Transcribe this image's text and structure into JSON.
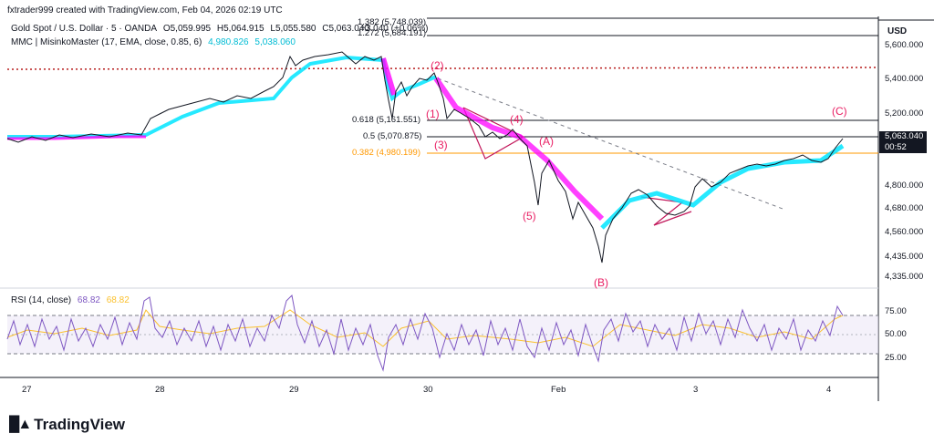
{
  "header": {
    "credit": "fxtrader999 created with TradingView.com, Feb 04, 2026 02:19 UTC"
  },
  "legend": {
    "symbol": "Gold Spot / U.S. Dollar · 5 · OANDA",
    "open": "O5,059.995",
    "high": "H5,064.915",
    "low": "L5,055.580",
    "close": "C5,063.040",
    "change": "+3.040 (+0.06%)",
    "indicator": "MMC | MisinkoMaster (17, EMA, close, 0.85, 6)",
    "ind_val1": "4,980.826",
    "ind_val2": "5,038.060"
  },
  "price_axis": {
    "currency": "USD",
    "ticks": [
      "5,600.000",
      "5,400.000",
      "5,200.000",
      "4,800.000",
      "4,680.000",
      "4,560.000",
      "4,435.000",
      "4,335.000"
    ],
    "last_price": "5,063.040",
    "countdown": "00:52"
  },
  "rsi_axis": {
    "ticks": [
      "75.00",
      "50.00",
      "25.00"
    ]
  },
  "rsi_legend": {
    "label": "RSI (14, close)",
    "value1": "68.82",
    "value2": "68.82"
  },
  "time_axis": {
    "ticks": [
      "27",
      "28",
      "29",
      "30",
      "Feb",
      "3",
      "4"
    ]
  },
  "fib_levels": [
    {
      "label": "1.382 (5,748.039)",
      "color": "#131722"
    },
    {
      "label": "1.272 (5,684.191)",
      "color": "#131722"
    },
    {
      "label": "0.618 (5,161.551)",
      "color": "#131722"
    },
    {
      "label": "0.5 (5,070.875)",
      "color": "#131722"
    },
    {
      "label": "0.382 (4,980.199)",
      "color": "#ff9800"
    }
  ],
  "waves": [
    "(2)",
    "(1)",
    "(4)",
    "(3)",
    "(A)",
    "(5)",
    "(B)",
    "(C)"
  ],
  "colors": {
    "wave": "#e91e63",
    "cyan": "#00e5ff",
    "magenta": "#ff00ff",
    "rsi": "#7e57c2",
    "rsi_ma": "#fbc02d",
    "fib382": "#ff9800",
    "resistance": "#b71c1c"
  },
  "branding": {
    "logo_text": "TradingView"
  }
}
